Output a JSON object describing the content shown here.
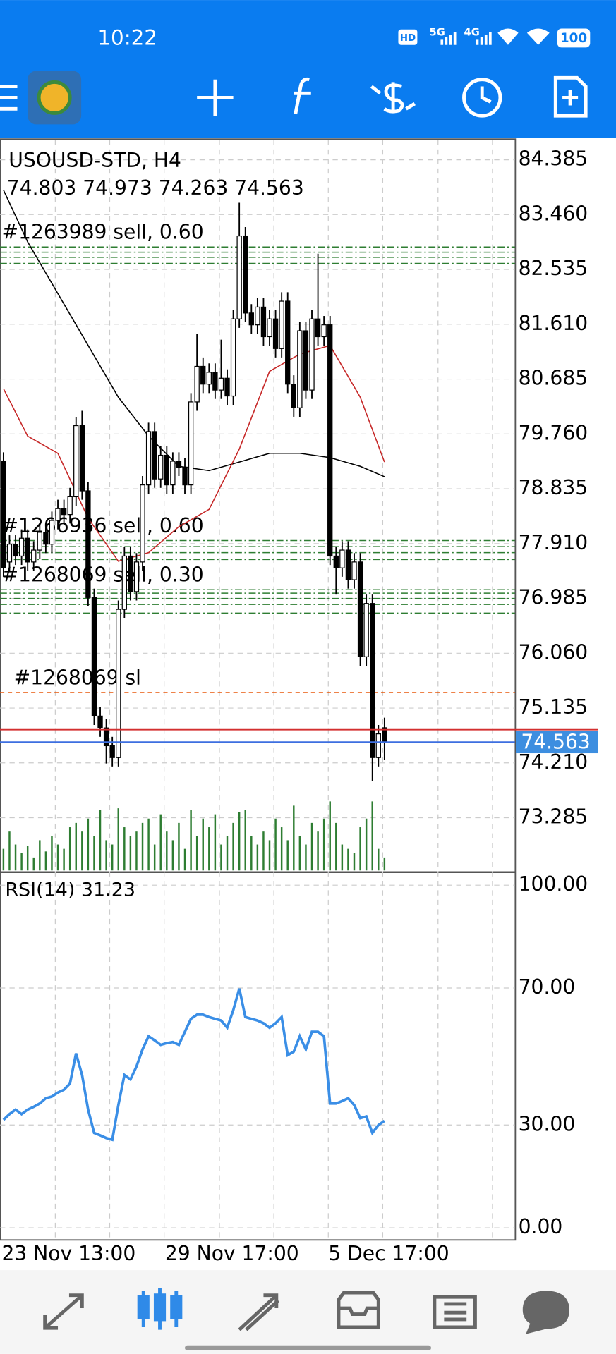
{
  "status_bar": {
    "time": "10:22",
    "network": [
      "HD",
      "5G",
      "4G"
    ],
    "battery": "100"
  },
  "chart_data": {
    "type": "candlestick",
    "title": "USOUSD-STD, H4",
    "categories": [
      "23 Nov 13:00",
      null,
      null,
      null,
      null,
      null,
      null,
      null,
      null,
      null,
      null,
      null,
      null,
      null,
      null,
      null,
      null,
      null,
      null,
      null,
      null,
      null,
      null,
      null,
      null,
      null,
      null,
      "29 Nov 17:00",
      null,
      null,
      null,
      null,
      null,
      null,
      null,
      null,
      null,
      null,
      null,
      null,
      null,
      null,
      null,
      null,
      null,
      null,
      null,
      null,
      null,
      null,
      null,
      null,
      null,
      null,
      "5 Dec 17:00",
      null,
      null,
      null,
      null,
      null,
      null,
      null,
      null,
      null
    ],
    "open": [
      79.3,
      77.6,
      77.9,
      77.7,
      78.0,
      77.6,
      77.8,
      78.1,
      77.9,
      78.3,
      78.5,
      78.4,
      78.7,
      79.9,
      78.8,
      77.0,
      75.0,
      74.8,
      74.5,
      74.3,
      76.8,
      77.7,
      77.1,
      77.6,
      78.9,
      79.8,
      79.0,
      79.4,
      78.9,
      79.3,
      79.2,
      78.9,
      80.3,
      80.9,
      80.6,
      80.8,
      80.5,
      80.7,
      80.4,
      81.7,
      83.1,
      81.8,
      81.6,
      81.9,
      81.4,
      81.7,
      81.2,
      82.0,
      80.6,
      80.2,
      81.5,
      80.5,
      81.7,
      81.4,
      81.6,
      77.7,
      77.5,
      77.8,
      77.3,
      77.6,
      76.0,
      76.9,
      74.3,
      74.803
    ],
    "high": [
      79.45,
      78.05,
      78.05,
      78.15,
      78.15,
      77.95,
      78.25,
      78.25,
      78.45,
      78.65,
      78.65,
      78.85,
      80.05,
      80.15,
      78.95,
      77.15,
      75.15,
      74.95,
      74.65,
      76.95,
      77.85,
      77.85,
      77.75,
      79.05,
      79.95,
      79.95,
      79.55,
      79.55,
      79.45,
      79.45,
      79.35,
      80.45,
      81.45,
      81.05,
      80.95,
      80.95,
      81.35,
      80.85,
      81.85,
      83.66,
      83.25,
      81.95,
      82.05,
      82.05,
      81.85,
      81.85,
      82.15,
      82.15,
      80.75,
      81.65,
      81.65,
      81.85,
      82.8,
      81.75,
      81.75,
      77.85,
      77.95,
      77.95,
      77.75,
      77.75,
      77.05,
      77.05,
      74.85,
      74.973
    ],
    "low": [
      77.35,
      77.45,
      77.55,
      77.55,
      77.45,
      77.45,
      77.65,
      77.75,
      77.75,
      78.15,
      78.25,
      78.25,
      78.55,
      78.65,
      76.85,
      74.85,
      74.65,
      74.2,
      74.15,
      74.15,
      76.65,
      76.95,
      76.95,
      77.45,
      78.75,
      78.85,
      78.85,
      78.75,
      78.75,
      79.05,
      78.75,
      78.75,
      80.15,
      80.45,
      80.45,
      80.35,
      80.35,
      80.25,
      80.25,
      81.55,
      81.65,
      81.45,
      81.45,
      81.25,
      81.25,
      81.05,
      81.05,
      80.45,
      80.05,
      80.05,
      80.35,
      80.35,
      81.25,
      81.25,
      77.55,
      77.05,
      77.35,
      77.15,
      77.15,
      75.85,
      75.85,
      73.9,
      74.15,
      74.263
    ],
    "close": [
      77.5,
      77.9,
      77.7,
      78.0,
      77.6,
      77.8,
      78.1,
      77.9,
      78.3,
      78.5,
      78.4,
      78.7,
      79.9,
      78.8,
      77.0,
      75.0,
      74.8,
      74.5,
      74.3,
      76.8,
      77.7,
      77.1,
      77.6,
      78.9,
      79.8,
      79.0,
      79.4,
      78.9,
      79.3,
      79.2,
      78.9,
      80.3,
      80.9,
      80.6,
      80.8,
      80.5,
      80.7,
      80.4,
      81.7,
      83.1,
      81.8,
      81.6,
      81.9,
      81.4,
      81.7,
      81.2,
      82.0,
      80.6,
      80.2,
      81.5,
      80.5,
      81.7,
      81.4,
      81.6,
      77.7,
      77.5,
      77.8,
      77.3,
      77.6,
      76.0,
      76.9,
      74.3,
      74.7,
      74.563
    ],
    "volume": [
      25,
      45,
      30,
      20,
      28,
      15,
      35,
      22,
      40,
      30,
      25,
      50,
      55,
      45,
      60,
      40,
      70,
      35,
      30,
      72,
      50,
      40,
      45,
      55,
      60,
      30,
      65,
      45,
      35,
      55,
      25,
      70,
      40,
      60,
      50,
      65,
      30,
      40,
      55,
      68,
      70,
      40,
      30,
      45,
      35,
      60,
      50,
      35,
      75,
      40,
      30,
      55,
      45,
      60,
      80,
      55,
      30,
      25,
      20,
      50,
      60,
      80,
      25,
      15
    ],
    "volume_color": "#2e7d32",
    "moving_averages": [
      {
        "color": "#000000",
        "x": [
          0,
          4,
          9,
          14,
          19,
          24,
          29,
          34,
          39,
          44,
          49,
          54,
          59,
          63
        ],
        "values": [
          83.875,
          83.0,
          82.127,
          81.253,
          80.379,
          79.724,
          79.214,
          79.141,
          79.287,
          79.433,
          79.433,
          79.36,
          79.214,
          79.039
        ]
      },
      {
        "color": "#c62828",
        "x": [
          0,
          4,
          9,
          14,
          19,
          24,
          29,
          34,
          39,
          44,
          49,
          54,
          59,
          63
        ],
        "values": [
          80.525,
          79.724,
          79.433,
          78.34,
          77.612,
          77.757,
          78.194,
          78.486,
          79.505,
          80.816,
          81.108,
          81.253,
          80.379,
          79.287
        ]
      }
    ],
    "orders": [
      {
        "label": "#1263989 sell, 0.60",
        "price": 82.914,
        "color": "#2e7d32"
      },
      {
        "label": "#1266936 sell, 0.60",
        "price": 77.961,
        "color": "#2e7d32"
      },
      {
        "label": "#1268069 sell, 0.30",
        "price": 77.131,
        "color": "#2e7d32"
      },
      {
        "label": "#1268069 sl",
        "price": 75.397,
        "color": "#e8590c"
      }
    ],
    "other_levels": [
      82.826,
      82.739,
      82.637,
      77.859,
      77.757,
      77.641,
      77.073,
      76.985,
      76.883,
      76.737
    ],
    "ask": 74.771,
    "ylim": [
      72.396,
      84.72
    ],
    "yticks": [
      84.385,
      {
        "value": 83.46,
        "label": "83.460"
      },
      82.535,
      {
        "value": 81.61,
        "label": "81.610"
      },
      80.685,
      {
        "value": 79.76,
        "label": "79.760"
      },
      78.835,
      {
        "value": 77.91,
        "label": "77.910"
      },
      76.985,
      {
        "value": 76.06,
        "label": "76.060"
      },
      75.135,
      {
        "value": 74.21,
        "label": "74.210"
      },
      73.285
    ],
    "grid": true,
    "rsi": {
      "label": "RSI(14)",
      "color": "#3a8ee6",
      "values": [
        31.5,
        33.2,
        34.5,
        33.2,
        34.5,
        35.3,
        36.3,
        37.8,
        38.3,
        39.5,
        40.3,
        42.1,
        50.9,
        44.6,
        34.5,
        27.7,
        27.0,
        26.2,
        25.7,
        35.8,
        44.6,
        43.3,
        47.1,
        52.1,
        55.9,
        54.7,
        53.4,
        53.9,
        54.2,
        53.4,
        57.2,
        61.0,
        62.2,
        62.2,
        61.5,
        61.0,
        60.5,
        58.4,
        63.5,
        69.8,
        61.5,
        61.0,
        60.5,
        59.7,
        58.4,
        59.7,
        61.5,
        50.4,
        51.4,
        55.9,
        52.1,
        57.2,
        57.2,
        55.9,
        36.3,
        36.3,
        37.0,
        37.8,
        35.8,
        32.0,
        32.5,
        27.7,
        30.0,
        31.23
      ],
      "ylim": [
        -3.3,
        103.3
      ],
      "yticks": [
        {
          "value": 100,
          "label": "100.00"
        },
        {
          "value": 70,
          "label": "70.00"
        },
        {
          "value": 30,
          "label": "30.00"
        },
        {
          "value": 0,
          "label": "0.00"
        }
      ]
    }
  }
}
